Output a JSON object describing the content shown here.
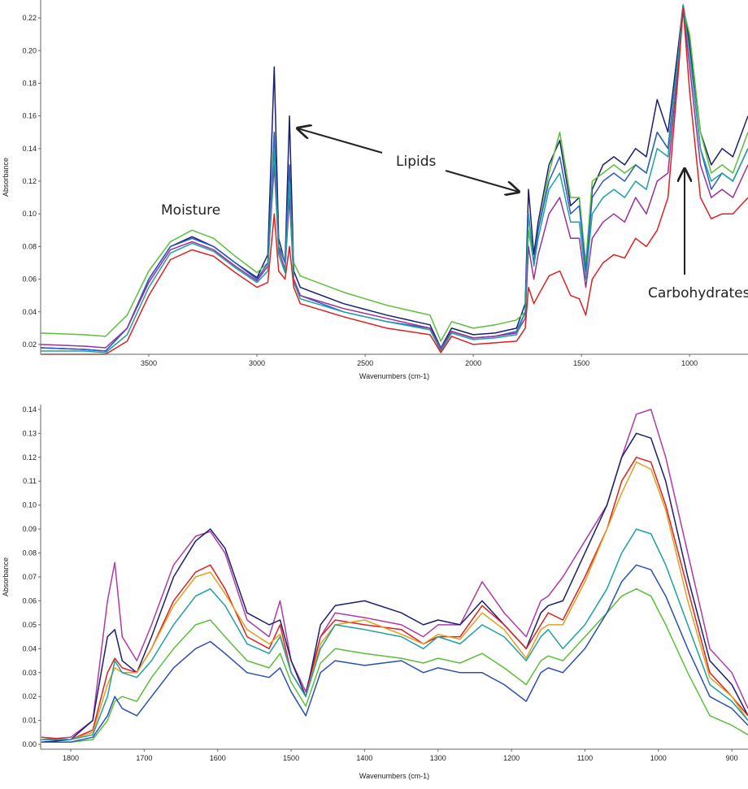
{
  "chart_data": [
    {
      "type": "line",
      "title": "",
      "xlabel": "Wavenumbers (cm-1)",
      "ylabel": "Absorbance",
      "xlim": [
        4000,
        730
      ],
      "ylim": [
        0.014,
        0.231
      ],
      "xticks": [
        3500,
        3000,
        2500,
        2000,
        1500,
        1000
      ],
      "yticks": [
        0.02,
        0.04,
        0.06,
        0.08,
        0.1,
        0.12,
        0.14,
        0.16,
        0.18,
        0.2,
        0.22
      ],
      "ytick_labels": [
        "0.02",
        "0.04",
        "0.06",
        "0.08",
        "0.10",
        "0.12",
        "0.14",
        "0.16",
        "0.18",
        "0.20",
        "0.22"
      ],
      "annotations": [
        "Moisture",
        "Lipids",
        "Carbohydrates"
      ],
      "x": [
        4000,
        3800,
        3700,
        3600,
        3500,
        3400,
        3300,
        3200,
        3100,
        3000,
        2950,
        2920,
        2900,
        2870,
        2850,
        2830,
        2800,
        2600,
        2400,
        2200,
        2150,
        2100,
        2000,
        1900,
        1800,
        1760,
        1745,
        1720,
        1700,
        1650,
        1600,
        1550,
        1510,
        1480,
        1450,
        1400,
        1350,
        1300,
        1250,
        1200,
        1150,
        1100,
        1050,
        1030,
        1000,
        950,
        900,
        850,
        800,
        730
      ],
      "series": [
        {
          "name": "navy",
          "color": "#1a1f6e",
          "values": [
            0.018,
            0.017,
            0.016,
            0.03,
            0.06,
            0.08,
            0.086,
            0.08,
            0.07,
            0.061,
            0.075,
            0.19,
            0.085,
            0.07,
            0.16,
            0.065,
            0.055,
            0.045,
            0.038,
            0.032,
            0.018,
            0.03,
            0.026,
            0.027,
            0.03,
            0.045,
            0.115,
            0.075,
            0.095,
            0.13,
            0.145,
            0.105,
            0.11,
            0.065,
            0.115,
            0.13,
            0.135,
            0.13,
            0.14,
            0.135,
            0.17,
            0.15,
            0.205,
            0.228,
            0.205,
            0.15,
            0.13,
            0.14,
            0.135,
            0.16
          ]
        },
        {
          "name": "green",
          "color": "#5bbf3a",
          "values": [
            0.027,
            0.026,
            0.025,
            0.038,
            0.065,
            0.083,
            0.09,
            0.085,
            0.074,
            0.064,
            0.07,
            0.15,
            0.08,
            0.072,
            0.12,
            0.07,
            0.062,
            0.052,
            0.044,
            0.038,
            0.022,
            0.034,
            0.03,
            0.032,
            0.035,
            0.04,
            0.09,
            0.07,
            0.09,
            0.125,
            0.15,
            0.11,
            0.11,
            0.07,
            0.12,
            0.125,
            0.13,
            0.125,
            0.13,
            0.125,
            0.15,
            0.14,
            0.2,
            0.226,
            0.21,
            0.15,
            0.125,
            0.13,
            0.125,
            0.15
          ]
        },
        {
          "name": "blue",
          "color": "#2a5cc8",
          "values": [
            0.018,
            0.017,
            0.016,
            0.03,
            0.06,
            0.08,
            0.085,
            0.08,
            0.07,
            0.06,
            0.07,
            0.15,
            0.08,
            0.07,
            0.13,
            0.06,
            0.05,
            0.04,
            0.034,
            0.03,
            0.018,
            0.028,
            0.024,
            0.025,
            0.028,
            0.04,
            0.1,
            0.07,
            0.09,
            0.12,
            0.135,
            0.1,
            0.105,
            0.065,
            0.11,
            0.12,
            0.125,
            0.12,
            0.13,
            0.125,
            0.15,
            0.14,
            0.2,
            0.225,
            0.2,
            0.14,
            0.115,
            0.125,
            0.12,
            0.14
          ]
        },
        {
          "name": "purple",
          "color": "#9b2f9b",
          "values": [
            0.02,
            0.019,
            0.018,
            0.03,
            0.058,
            0.078,
            0.083,
            0.078,
            0.068,
            0.059,
            0.068,
            0.13,
            0.078,
            0.066,
            0.11,
            0.06,
            0.05,
            0.042,
            0.036,
            0.03,
            0.017,
            0.028,
            0.024,
            0.025,
            0.027,
            0.036,
            0.08,
            0.06,
            0.075,
            0.1,
            0.11,
            0.085,
            0.085,
            0.055,
            0.085,
            0.095,
            0.1,
            0.095,
            0.11,
            0.1,
            0.12,
            0.125,
            0.195,
            0.225,
            0.19,
            0.13,
            0.11,
            0.115,
            0.11,
            0.13
          ]
        },
        {
          "name": "teal",
          "color": "#1fa0a0",
          "values": [
            0.016,
            0.016,
            0.015,
            0.026,
            0.055,
            0.076,
            0.082,
            0.077,
            0.067,
            0.058,
            0.065,
            0.14,
            0.075,
            0.064,
            0.12,
            0.058,
            0.048,
            0.04,
            0.034,
            0.029,
            0.016,
            0.027,
            0.023,
            0.024,
            0.026,
            0.04,
            0.1,
            0.068,
            0.085,
            0.115,
            0.125,
            0.095,
            0.095,
            0.06,
            0.1,
            0.11,
            0.115,
            0.11,
            0.12,
            0.115,
            0.14,
            0.135,
            0.2,
            0.228,
            0.198,
            0.14,
            0.12,
            0.125,
            0.12,
            0.14
          ]
        },
        {
          "name": "red",
          "color": "#e02020",
          "values": [
            0.014,
            0.014,
            0.014,
            0.022,
            0.05,
            0.072,
            0.078,
            0.074,
            0.064,
            0.055,
            0.058,
            0.1,
            0.065,
            0.06,
            0.08,
            0.055,
            0.045,
            0.037,
            0.03,
            0.026,
            0.015,
            0.025,
            0.02,
            0.021,
            0.022,
            0.03,
            0.055,
            0.045,
            0.05,
            0.062,
            0.065,
            0.05,
            0.048,
            0.038,
            0.06,
            0.07,
            0.075,
            0.073,
            0.085,
            0.08,
            0.09,
            0.11,
            0.19,
            0.226,
            0.175,
            0.11,
            0.097,
            0.1,
            0.1,
            0.11
          ]
        }
      ]
    },
    {
      "type": "line",
      "title": "",
      "xlabel": "Wavenumbers (cm-1)",
      "ylabel": "Absorbance",
      "xlim": [
        1841,
        878
      ],
      "ylim": [
        -0.002,
        0.142
      ],
      "xticks": [
        1800,
        1700,
        1600,
        1500,
        1400,
        1300,
        1200,
        1100,
        1000,
        900
      ],
      "yticks": [
        0,
        0.01,
        0.02,
        0.03,
        0.04,
        0.05,
        0.06,
        0.07,
        0.08,
        0.09,
        0.1,
        0.11,
        0.12,
        0.13,
        0.14
      ],
      "ytick_labels": [
        "0.00",
        "0.01",
        "0.02",
        "0.03",
        "0.04",
        "0.05",
        "0.06",
        "0.07",
        "0.08",
        "0.09",
        "0.10",
        "0.11",
        "0.12",
        "0.13",
        "0.14"
      ],
      "x": [
        1840,
        1800,
        1770,
        1750,
        1740,
        1730,
        1710,
        1690,
        1660,
        1630,
        1610,
        1590,
        1560,
        1530,
        1515,
        1500,
        1480,
        1460,
        1440,
        1400,
        1350,
        1320,
        1300,
        1270,
        1240,
        1210,
        1180,
        1160,
        1150,
        1130,
        1100,
        1070,
        1050,
        1030,
        1010,
        990,
        960,
        930,
        900,
        878
      ],
      "series": [
        {
          "name": "purple",
          "color": "#b03aa8",
          "values": [
            0.002,
            0.003,
            0.01,
            0.06,
            0.076,
            0.045,
            0.035,
            0.05,
            0.075,
            0.087,
            0.089,
            0.08,
            0.052,
            0.045,
            0.06,
            0.035,
            0.022,
            0.045,
            0.055,
            0.053,
            0.05,
            0.045,
            0.05,
            0.05,
            0.068,
            0.055,
            0.045,
            0.06,
            0.062,
            0.07,
            0.085,
            0.1,
            0.12,
            0.138,
            0.14,
            0.12,
            0.08,
            0.04,
            0.03,
            0.015
          ]
        },
        {
          "name": "navy",
          "color": "#1a1f6e",
          "values": [
            0.001,
            0.002,
            0.01,
            0.045,
            0.048,
            0.035,
            0.03,
            0.045,
            0.07,
            0.085,
            0.09,
            0.082,
            0.055,
            0.05,
            0.052,
            0.035,
            0.02,
            0.05,
            0.058,
            0.06,
            0.055,
            0.05,
            0.052,
            0.05,
            0.06,
            0.05,
            0.04,
            0.055,
            0.058,
            0.06,
            0.08,
            0.1,
            0.12,
            0.13,
            0.128,
            0.11,
            0.07,
            0.035,
            0.025,
            0.012
          ]
        },
        {
          "name": "red",
          "color": "#e02020",
          "values": [
            0.003,
            0.002,
            0.006,
            0.03,
            0.036,
            0.032,
            0.03,
            0.04,
            0.06,
            0.072,
            0.075,
            0.065,
            0.045,
            0.04,
            0.05,
            0.03,
            0.02,
            0.045,
            0.052,
            0.05,
            0.048,
            0.042,
            0.045,
            0.045,
            0.058,
            0.05,
            0.04,
            0.05,
            0.055,
            0.052,
            0.07,
            0.09,
            0.11,
            0.12,
            0.118,
            0.1,
            0.065,
            0.03,
            0.02,
            0.012
          ]
        },
        {
          "name": "orange",
          "color": "#e0a020",
          "values": [
            0.002,
            0.002,
            0.005,
            0.025,
            0.032,
            0.03,
            0.03,
            0.04,
            0.058,
            0.07,
            0.072,
            0.063,
            0.048,
            0.042,
            0.046,
            0.03,
            0.02,
            0.042,
            0.05,
            0.052,
            0.046,
            0.042,
            0.046,
            0.044,
            0.055,
            0.048,
            0.036,
            0.048,
            0.05,
            0.05,
            0.068,
            0.09,
            0.105,
            0.118,
            0.115,
            0.098,
            0.06,
            0.028,
            0.02,
            0.01
          ]
        },
        {
          "name": "teal",
          "color": "#1fa0a0",
          "values": [
            0.002,
            0.002,
            0.004,
            0.02,
            0.035,
            0.03,
            0.028,
            0.035,
            0.05,
            0.062,
            0.065,
            0.058,
            0.042,
            0.038,
            0.045,
            0.03,
            0.02,
            0.04,
            0.05,
            0.048,
            0.045,
            0.04,
            0.045,
            0.042,
            0.05,
            0.045,
            0.035,
            0.045,
            0.048,
            0.04,
            0.05,
            0.065,
            0.08,
            0.09,
            0.088,
            0.075,
            0.05,
            0.025,
            0.018,
            0.01
          ]
        },
        {
          "name": "green",
          "color": "#5bbf3a",
          "values": [
            0.001,
            0.001,
            0.002,
            0.01,
            0.018,
            0.02,
            0.018,
            0.028,
            0.04,
            0.05,
            0.052,
            0.045,
            0.035,
            0.032,
            0.038,
            0.026,
            0.016,
            0.034,
            0.04,
            0.038,
            0.036,
            0.034,
            0.036,
            0.034,
            0.038,
            0.032,
            0.025,
            0.035,
            0.037,
            0.035,
            0.045,
            0.055,
            0.062,
            0.065,
            0.062,
            0.05,
            0.03,
            0.012,
            0.008,
            0.004
          ]
        },
        {
          "name": "blue",
          "color": "#2a4fb8",
          "values": [
            0.001,
            0.001,
            0.003,
            0.012,
            0.02,
            0.015,
            0.012,
            0.02,
            0.032,
            0.04,
            0.043,
            0.038,
            0.03,
            0.028,
            0.032,
            0.022,
            0.012,
            0.03,
            0.035,
            0.033,
            0.035,
            0.03,
            0.032,
            0.03,
            0.03,
            0.025,
            0.018,
            0.03,
            0.032,
            0.03,
            0.04,
            0.055,
            0.068,
            0.075,
            0.073,
            0.062,
            0.04,
            0.02,
            0.015,
            0.008
          ]
        }
      ]
    }
  ]
}
